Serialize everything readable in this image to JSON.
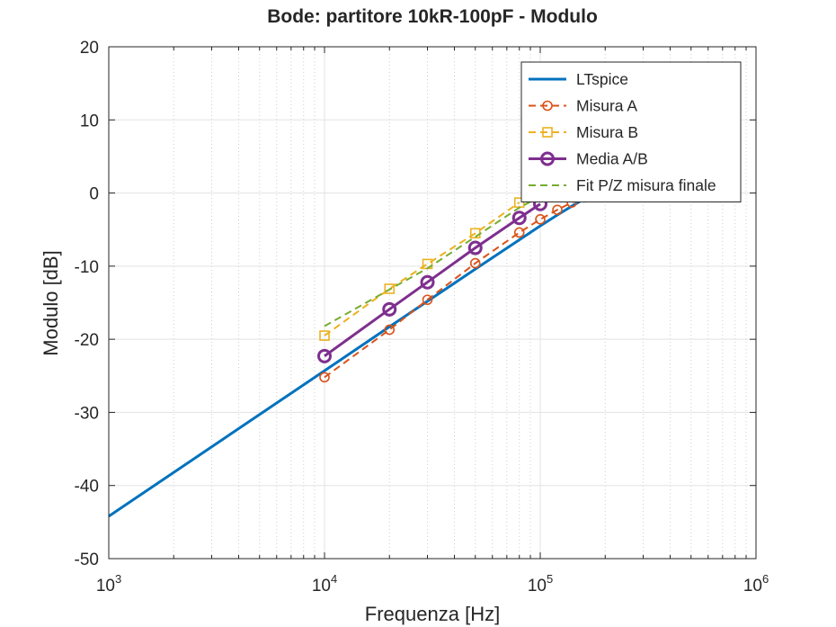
{
  "chart_data": {
    "type": "line",
    "title": "Bode: partitore 10kR-100pF - Modulo",
    "xlabel": "Frequenza [Hz]",
    "ylabel": "Modulo [dB]",
    "xscale": "log",
    "xlim": [
      1000,
      1000000
    ],
    "ylim": [
      -50,
      20
    ],
    "xticks": [
      {
        "base": "10",
        "exp": "3"
      },
      {
        "base": "10",
        "exp": "4"
      },
      {
        "base": "10",
        "exp": "5"
      },
      {
        "base": "10",
        "exp": "6"
      }
    ],
    "yticks": [
      "20",
      "10",
      "0",
      "-10",
      "-20",
      "-30",
      "-40",
      "-50"
    ],
    "grid": true,
    "legend_position": "top-right",
    "series": [
      {
        "name": "LTspice",
        "color": "#0072bd",
        "style": "solid",
        "marker": "none",
        "x": [
          1000,
          10000,
          20000,
          30000,
          50000,
          80000,
          100000,
          120000,
          140000,
          160000,
          180000
        ],
        "y": [
          -44.2,
          -24.3,
          -18.3,
          -14.8,
          -10.4,
          -6.4,
          -4.5,
          -3.0,
          -1.8,
          -0.8,
          0.0
        ]
      },
      {
        "name": "Misura A",
        "color": "#d95319",
        "style": "dashed",
        "marker": "circle",
        "x": [
          10000,
          20000,
          30000,
          50000,
          80000,
          100000,
          120000,
          140000,
          160000
        ],
        "y": [
          -25.2,
          -18.7,
          -14.6,
          -9.6,
          -5.4,
          -3.6,
          -2.3,
          -1.3,
          -0.6
        ]
      },
      {
        "name": "Misura B",
        "color": "#edb120",
        "style": "dashed",
        "marker": "square",
        "x": [
          10000,
          20000,
          30000,
          50000,
          80000
        ],
        "y": [
          -19.5,
          -13.1,
          -9.7,
          -5.5,
          -1.3
        ]
      },
      {
        "name": "Media A/B",
        "color": "#7e2f8e",
        "style": "solid",
        "marker": "circle",
        "x": [
          10000,
          20000,
          30000,
          50000,
          80000,
          100000
        ],
        "y": [
          -22.3,
          -15.9,
          -12.2,
          -7.5,
          -3.4,
          -1.5
        ]
      },
      {
        "name": "Fit P/Z misura finale",
        "color": "#77ac30",
        "style": "dashed",
        "marker": "none",
        "x": [
          10000,
          20000,
          30000,
          50000,
          80000,
          100000
        ],
        "y": [
          -18.2,
          -13.2,
          -10.3,
          -6.0,
          -2.0,
          -0.5
        ]
      }
    ]
  }
}
